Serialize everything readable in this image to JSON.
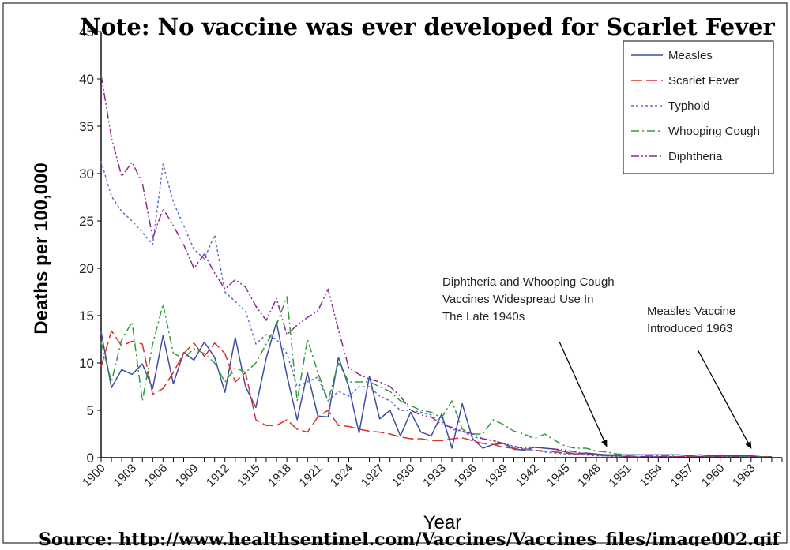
{
  "chart_data": {
    "type": "line",
    "title": "Note: No vaccine was ever developed for Scarlet Fever",
    "xlabel": "Year",
    "ylabel": "Deaths per 100,000",
    "source": "Source: http://www.healthsentinel.com/Vaccines/Vaccines_files/image002.gif",
    "ylim": [
      0,
      45
    ],
    "xlim": [
      1900,
      1966
    ],
    "y_ticks": [
      0,
      5,
      10,
      15,
      20,
      25,
      30,
      35,
      40,
      45
    ],
    "x_tick_labels": [
      "1900",
      "1903",
      "1906",
      "1909",
      "1912",
      "1915",
      "1918",
      "1921",
      "1924",
      "1927",
      "1930",
      "1933",
      "1936",
      "1939",
      "1942",
      "1945",
      "1948",
      "1951",
      "1954",
      "1957",
      "1960",
      "1963"
    ],
    "grid": false,
    "legend_position": "top-right",
    "series": [
      {
        "name": "Measles",
        "color": "#3b4f9e",
        "dash": "solid",
        "x": [
          1900,
          1901,
          1902,
          1903,
          1904,
          1905,
          1906,
          1907,
          1908,
          1909,
          1910,
          1911,
          1912,
          1913,
          1914,
          1915,
          1916,
          1917,
          1918,
          1919,
          1920,
          1921,
          1922,
          1923,
          1924,
          1925,
          1926,
          1927,
          1928,
          1929,
          1930,
          1931,
          1932,
          1933,
          1934,
          1935,
          1936,
          1937,
          1938,
          1939,
          1940,
          1941,
          1942,
          1943,
          1944,
          1945,
          1946,
          1947,
          1948,
          1949,
          1950,
          1951,
          1952,
          1953,
          1954,
          1955,
          1956,
          1957,
          1958,
          1959,
          1960,
          1961,
          1962,
          1963,
          1964,
          1965
        ],
        "y": [
          13.3,
          7.4,
          9.3,
          8.8,
          9.9,
          7.3,
          12.9,
          7.8,
          11.1,
          10.3,
          12.2,
          10.6,
          6.9,
          12.7,
          7.5,
          5.3,
          10.5,
          14.3,
          8.7,
          4.0,
          9.0,
          4.4,
          4.3,
          10.6,
          7.5,
          2.6,
          8.6,
          4.1,
          5.0,
          2.3,
          4.8,
          2.7,
          2.3,
          4.6,
          1.0,
          5.7,
          2.0,
          1.0,
          1.4,
          1.5,
          0.9,
          0.8,
          1.1,
          1.0,
          0.9,
          0.6,
          0.4,
          0.5,
          0.4,
          0.3,
          0.3,
          0.3,
          0.3,
          0.3,
          0.3,
          0.3,
          0.3,
          0.2,
          0.3,
          0.2,
          0.2,
          0.2,
          0.2,
          0.2,
          0.1,
          0.1
        ]
      },
      {
        "name": "Scarlet Fever",
        "color": "#d9302a",
        "dash": "long-dash",
        "x": [
          1900,
          1901,
          1902,
          1903,
          1904,
          1905,
          1906,
          1907,
          1908,
          1909,
          1910,
          1911,
          1912,
          1913,
          1914,
          1915,
          1916,
          1917,
          1918,
          1919,
          1920,
          1921,
          1922,
          1923,
          1924,
          1925,
          1926,
          1927,
          1928,
          1929,
          1930,
          1931,
          1932,
          1933,
          1934,
          1935,
          1936,
          1937,
          1938,
          1939,
          1940,
          1941,
          1942,
          1943,
          1944,
          1945,
          1946,
          1947,
          1948,
          1949,
          1950,
          1951,
          1952,
          1953,
          1954,
          1955,
          1956,
          1957,
          1958,
          1959,
          1960,
          1961,
          1962,
          1963,
          1964,
          1965
        ],
        "y": [
          9.6,
          13.4,
          11.8,
          12.3,
          12.0,
          6.7,
          7.3,
          9.0,
          11.0,
          12.1,
          10.7,
          12.1,
          11.0,
          8.0,
          9.0,
          4.0,
          3.4,
          3.4,
          4.0,
          3.0,
          2.7,
          4.3,
          5.0,
          3.4,
          3.3,
          3.0,
          2.8,
          2.7,
          2.5,
          2.2,
          2.0,
          2.0,
          1.8,
          1.8,
          2.0,
          2.1,
          1.8,
          1.5,
          1.4,
          1.1,
          1.0,
          0.9,
          0.8,
          0.7,
          0.6,
          0.5,
          0.4,
          0.3,
          0.3,
          0.2,
          0.2,
          0.2,
          0.1,
          0.1,
          0.1,
          0.1,
          0.1,
          0.1,
          0.1,
          0.1,
          0.1,
          0.1,
          0.1,
          0.1,
          0.1,
          0.1
        ]
      },
      {
        "name": "Typhoid",
        "color": "#5a6fcf",
        "dash": "dotted",
        "x": [
          1900,
          1901,
          1902,
          1903,
          1904,
          1905,
          1906,
          1907,
          1908,
          1909,
          1910,
          1911,
          1912,
          1913,
          1914,
          1915,
          1916,
          1917,
          1918,
          1919,
          1920,
          1921,
          1922,
          1923,
          1924,
          1925,
          1926,
          1927,
          1928,
          1929,
          1930,
          1931,
          1932,
          1933,
          1934,
          1935,
          1936,
          1937,
          1938,
          1939,
          1940,
          1941,
          1942,
          1943,
          1944,
          1945,
          1946,
          1947,
          1948,
          1949,
          1950,
          1951,
          1952,
          1953,
          1954,
          1955,
          1956,
          1957,
          1958,
          1959,
          1960,
          1961,
          1962,
          1963,
          1964,
          1965
        ],
        "y": [
          31.3,
          27.6,
          26.0,
          25.0,
          23.8,
          22.5,
          31.0,
          27.0,
          24.5,
          22.0,
          21.0,
          23.5,
          17.5,
          16.5,
          15.5,
          12.0,
          13.0,
          12.5,
          11.0,
          7.5,
          8.0,
          8.5,
          6.0,
          7.0,
          6.5,
          7.5,
          7.5,
          6.5,
          6.0,
          5.0,
          5.0,
          4.8,
          4.5,
          3.8,
          3.0,
          2.8,
          2.2,
          2.0,
          1.8,
          1.5,
          1.1,
          0.9,
          0.8,
          0.6,
          0.5,
          0.4,
          0.3,
          0.3,
          0.2,
          0.2,
          0.1,
          0.1,
          0.1,
          0.1,
          0.1,
          0.1,
          0.1,
          0.1,
          0.1,
          0.1,
          0.1,
          0.1,
          0.1,
          0.1,
          0.1,
          0.1
        ]
      },
      {
        "name": "Whooping Cough",
        "color": "#2e9a3a",
        "dash": "dash-dot",
        "x": [
          1900,
          1901,
          1902,
          1903,
          1904,
          1905,
          1906,
          1907,
          1908,
          1909,
          1910,
          1911,
          1912,
          1913,
          1914,
          1915,
          1916,
          1917,
          1918,
          1919,
          1920,
          1921,
          1922,
          1923,
          1924,
          1925,
          1926,
          1927,
          1928,
          1929,
          1930,
          1931,
          1932,
          1933,
          1934,
          1935,
          1936,
          1937,
          1938,
          1939,
          1940,
          1941,
          1942,
          1943,
          1944,
          1945,
          1946,
          1947,
          1948,
          1949,
          1950,
          1951,
          1952,
          1953,
          1954,
          1955,
          1956,
          1957,
          1958,
          1959,
          1960,
          1961,
          1962,
          1963,
          1964,
          1965
        ],
        "y": [
          12.2,
          8.0,
          12.5,
          14.3,
          6.0,
          12.0,
          16.2,
          11.0,
          10.5,
          11.5,
          11.0,
          10.0,
          8.0,
          9.5,
          9.0,
          10.0,
          12.0,
          14.0,
          17.0,
          6.0,
          12.5,
          9.0,
          6.0,
          10.0,
          8.0,
          8.0,
          8.0,
          7.5,
          7.0,
          6.0,
          5.5,
          5.0,
          4.8,
          4.2,
          6.0,
          3.0,
          2.5,
          2.5,
          4.0,
          3.5,
          2.8,
          2.5,
          2.0,
          2.5,
          1.8,
          1.2,
          1.0,
          1.0,
          0.7,
          0.6,
          0.4,
          0.3,
          0.3,
          0.2,
          0.2,
          0.2,
          0.1,
          0.1,
          0.1,
          0.1,
          0.1,
          0.1,
          0.1,
          0.1,
          0.1,
          0.1
        ]
      },
      {
        "name": "Diphtheria",
        "color": "#8a2a8e",
        "dash": "dash-dot-dot",
        "x": [
          1900,
          1901,
          1902,
          1903,
          1904,
          1905,
          1906,
          1907,
          1908,
          1909,
          1910,
          1911,
          1912,
          1913,
          1914,
          1915,
          1916,
          1917,
          1918,
          1919,
          1920,
          1921,
          1922,
          1923,
          1924,
          1925,
          1926,
          1927,
          1928,
          1929,
          1930,
          1931,
          1932,
          1933,
          1934,
          1935,
          1936,
          1937,
          1938,
          1939,
          1940,
          1941,
          1942,
          1943,
          1944,
          1945,
          1946,
          1947,
          1948,
          1949,
          1950,
          1951,
          1952,
          1953,
          1954,
          1955,
          1956,
          1957,
          1958,
          1959,
          1960,
          1961,
          1962,
          1963,
          1964,
          1965
        ],
        "y": [
          40.4,
          33.8,
          29.7,
          31.2,
          29.0,
          23.2,
          26.3,
          24.5,
          22.5,
          20.0,
          21.5,
          19.5,
          17.8,
          18.8,
          18.0,
          16.0,
          14.5,
          16.8,
          13.0,
          14.0,
          14.8,
          15.5,
          17.8,
          13.5,
          9.5,
          8.8,
          8.3,
          8.0,
          7.5,
          6.5,
          5.0,
          4.5,
          4.3,
          3.5,
          3.2,
          2.8,
          2.5,
          2.0,
          1.8,
          1.5,
          1.2,
          1.0,
          1.1,
          1.0,
          0.9,
          0.8,
          0.6,
          0.4,
          0.3,
          0.2,
          0.2,
          0.1,
          0.1,
          0.1,
          0.1,
          0.1,
          0.1,
          0.1,
          0.1,
          0.1,
          0.1,
          0.1,
          0.1,
          0.1,
          0.1,
          0.1
        ]
      }
    ],
    "annotations": [
      {
        "text": "Diphtheria and Whooping Cough\nVaccines Widespread Use In\nThe Late 1940s",
        "arrow_to": {
          "x": 1949,
          "y": 1.2
        }
      },
      {
        "text": "Measles Vaccine\nIntroduced 1963",
        "arrow_to": {
          "x": 1963,
          "y": 1.0
        }
      }
    ]
  }
}
